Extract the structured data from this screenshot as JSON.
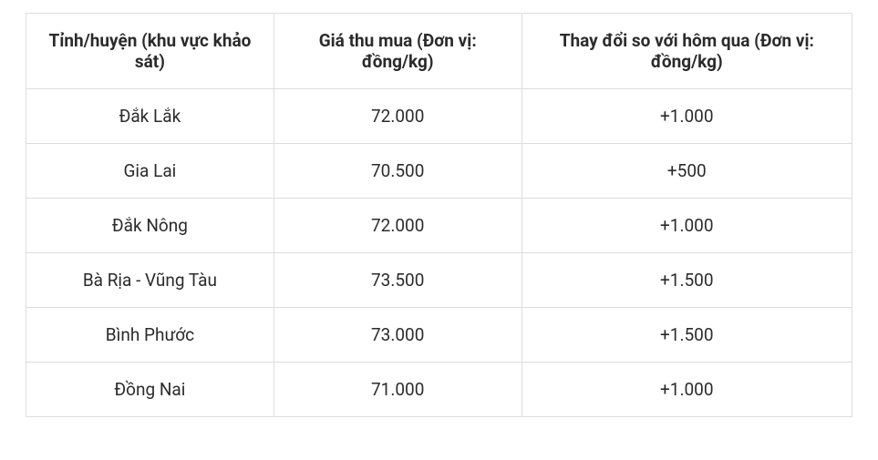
{
  "table": {
    "columns": [
      "Tỉnh/huyện (khu vực khảo sát)",
      "Giá thu mua (Đơn vị: đồng/kg)",
      "Thay đổi so với hôm qua (Đơn vị: đồng/kg)"
    ],
    "column_widths": [
      "30%",
      "30%",
      "40%"
    ],
    "rows": [
      [
        "Đắk Lắk",
        "72.000",
        "+1.000"
      ],
      [
        "Gia Lai",
        "70.500",
        "+500"
      ],
      [
        "Đắk Nông",
        "72.000",
        "+1.000"
      ],
      [
        "Bà Rịa - Vũng Tàu",
        "73.500",
        "+1.500"
      ],
      [
        "Bình Phước",
        "73.000",
        "+1.500"
      ],
      [
        "Đồng Nai",
        "71.000",
        "+1.000"
      ]
    ],
    "border_color": "#dddddd",
    "text_color": "#2b2b2b",
    "header_fontsize": 19,
    "cell_fontsize": 19,
    "background_color": "#ffffff"
  }
}
